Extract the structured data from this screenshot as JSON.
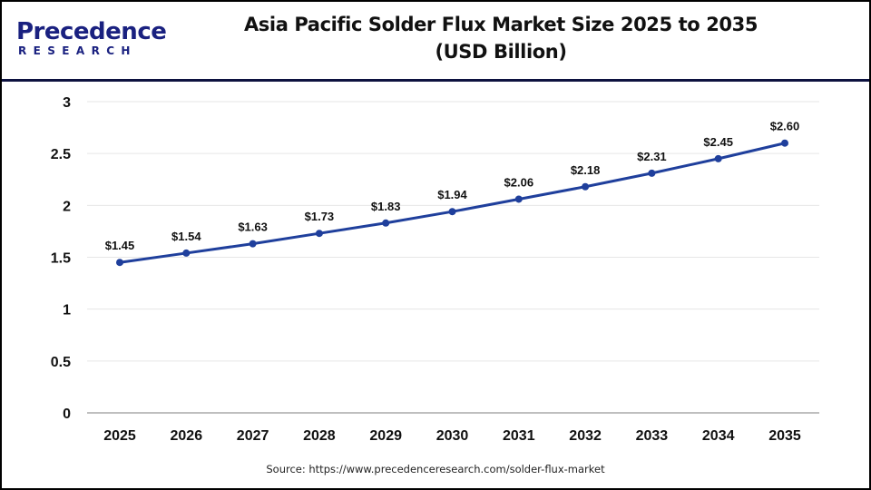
{
  "header": {
    "logo": {
      "brand_top": "Precedence",
      "brand_bottom": "RESEARCH"
    },
    "title_line1": "Asia Pacific Solder Flux Market Size 2025 to 2035",
    "title_line2": "(USD Billion)"
  },
  "footer": {
    "source": "Source: https://www.precedenceresearch.com/solder-flux-market"
  },
  "colors": {
    "line": "#1f3f9c",
    "header_rule": "#0d1240",
    "gridline": "#e6e6e6",
    "axis": "#bfbfbf",
    "text": "#111111",
    "logo_dark": "#1a2180",
    "logo_light": "#2a3ec0"
  },
  "chart_data": {
    "type": "line",
    "title": "Asia Pacific Solder Flux Market Size 2025 to 2035 (USD Billion)",
    "xlabel": "",
    "ylabel": "",
    "categories": [
      "2025",
      "2026",
      "2027",
      "2028",
      "2029",
      "2030",
      "2031",
      "2032",
      "2033",
      "2034",
      "2035"
    ],
    "series": [
      {
        "name": "Asia Pacific Solder Flux Market Size (USD Billion)",
        "values": [
          1.45,
          1.54,
          1.63,
          1.73,
          1.83,
          1.94,
          2.06,
          2.18,
          2.31,
          2.45,
          2.6
        ],
        "data_labels": [
          "$1.45",
          "$1.54",
          "$1.63",
          "$1.73",
          "$1.83",
          "$1.94",
          "$2.06",
          "$2.18",
          "$2.31",
          "$2.45",
          "$2.60"
        ]
      }
    ],
    "ylim": [
      0,
      3
    ],
    "yticks": [
      "0",
      "0.5",
      "1",
      "1.5",
      "2",
      "2.5",
      "3"
    ],
    "grid": true,
    "legend": "none",
    "source": "Source: https://www.precedenceresearch.com/solder-flux-market"
  }
}
